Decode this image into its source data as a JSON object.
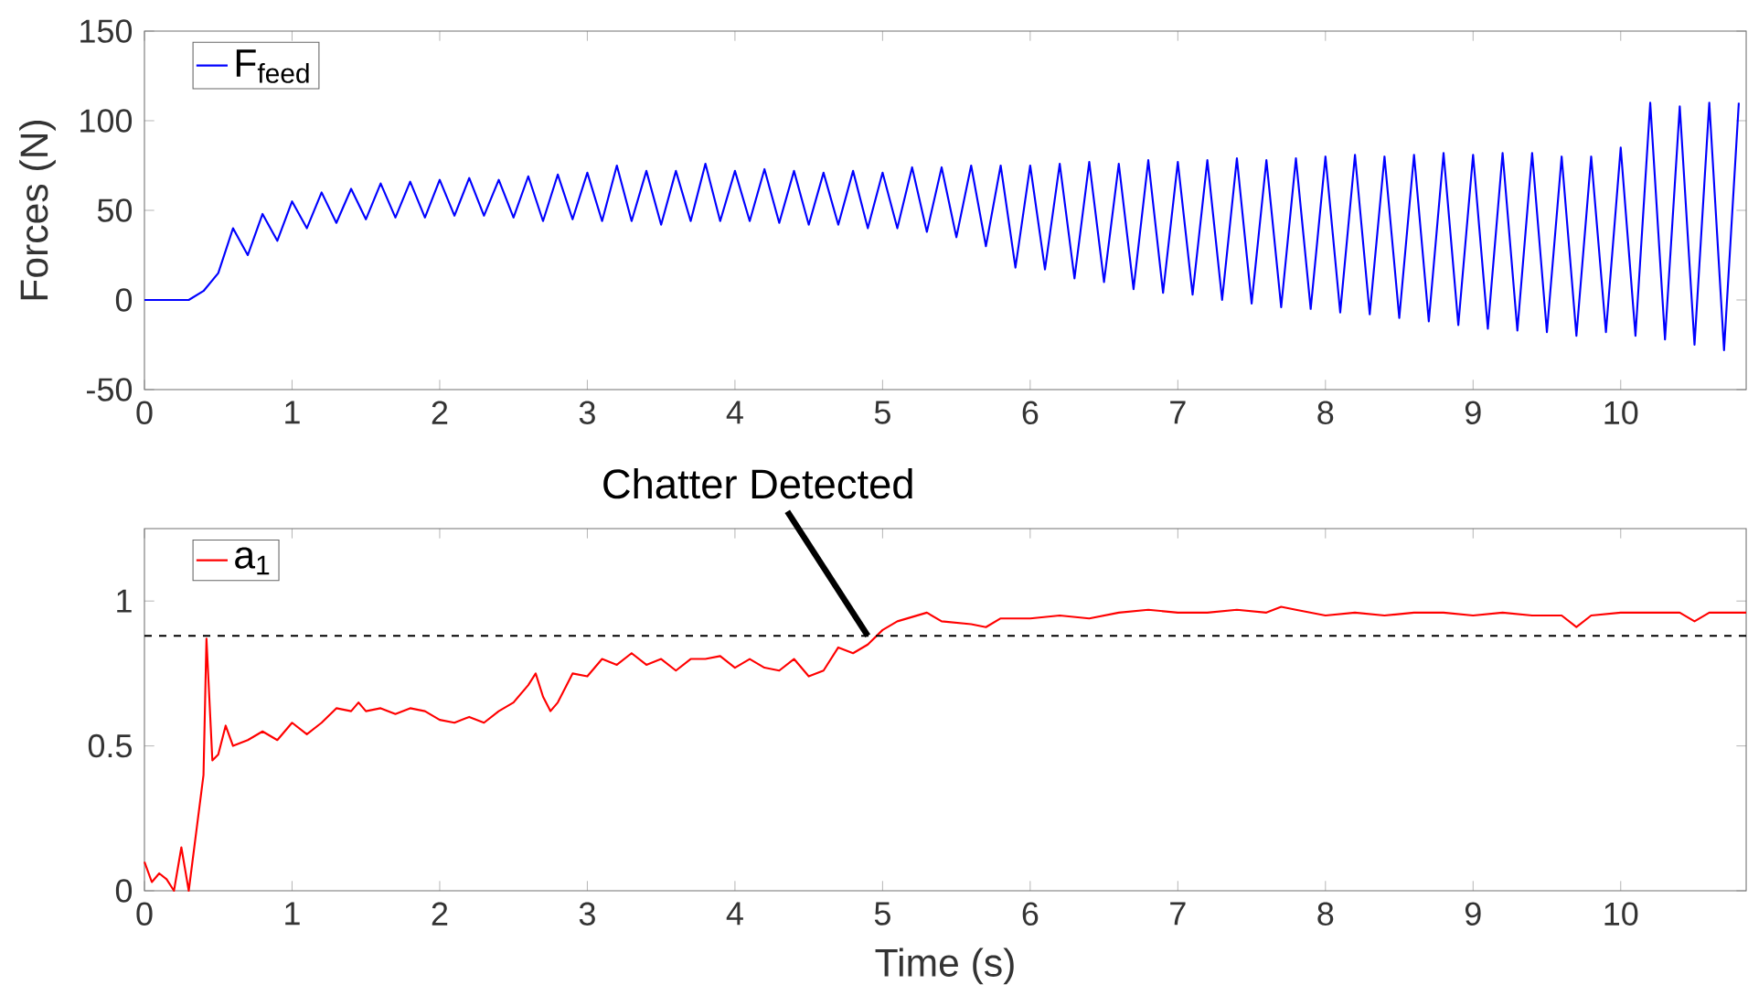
{
  "chart_data": [
    {
      "type": "line",
      "ylabel": "Forces (N)",
      "xlim": [
        0,
        10.85
      ],
      "xticks": [
        0,
        1,
        2,
        3,
        4,
        5,
        6,
        7,
        8,
        9,
        10
      ],
      "ylim": [
        -50,
        150
      ],
      "yticks": [
        -50,
        0,
        50,
        100,
        150
      ],
      "legend": "top left",
      "grid": false,
      "marker": "none",
      "line_style": "solid",
      "x": [
        0.0,
        0.1,
        0.2,
        0.3,
        0.4,
        0.5,
        0.6,
        0.7,
        0.8,
        0.9,
        1.0,
        1.1,
        1.2,
        1.3,
        1.4,
        1.5,
        1.6,
        1.7,
        1.8,
        1.9,
        2.0,
        2.1,
        2.2,
        2.3,
        2.4,
        2.5,
        2.6,
        2.7,
        2.8,
        2.9,
        3.0,
        3.1,
        3.2,
        3.3,
        3.4,
        3.5,
        3.6,
        3.7,
        3.8,
        3.9,
        4.0,
        4.1,
        4.2,
        4.3,
        4.4,
        4.5,
        4.6,
        4.7,
        4.8,
        4.9,
        5.0,
        5.1,
        5.2,
        5.3,
        5.4,
        5.5,
        5.6,
        5.7,
        5.8,
        5.9,
        6.0,
        6.1,
        6.2,
        6.3,
        6.4,
        6.5,
        6.6,
        6.7,
        6.8,
        6.9,
        7.0,
        7.1,
        7.2,
        7.3,
        7.4,
        7.5,
        7.6,
        7.7,
        7.8,
        7.9,
        8.0,
        8.1,
        8.2,
        8.3,
        8.4,
        8.5,
        8.6,
        8.7,
        8.8,
        8.9,
        9.0,
        9.1,
        9.2,
        9.3,
        9.4,
        9.5,
        9.6,
        9.7,
        9.8,
        9.9,
        10.0,
        10.1,
        10.2,
        10.3,
        10.4,
        10.5,
        10.6,
        10.7,
        10.8
      ],
      "series": [
        {
          "name": "F$_{feed}$",
          "color": "#0000ff",
          "values": [
            0,
            0,
            0,
            0,
            5,
            15,
            40,
            25,
            48,
            33,
            55,
            40,
            60,
            43,
            62,
            45,
            65,
            46,
            66,
            46,
            67,
            47,
            68,
            47,
            67,
            46,
            69,
            44,
            70,
            45,
            71,
            44,
            75,
            44,
            72,
            42,
            72,
            44,
            76,
            44,
            72,
            44,
            73,
            43,
            72,
            42,
            71,
            42,
            72,
            40,
            71,
            40,
            74,
            38,
            74,
            35,
            75,
            30,
            75,
            18,
            75,
            17,
            76,
            12,
            77,
            10,
            76,
            6,
            78,
            4,
            77,
            3,
            78,
            0,
            79,
            -2,
            78,
            -4,
            79,
            -5,
            80,
            -7,
            81,
            -8,
            80,
            -10,
            81,
            -12,
            82,
            -14,
            81,
            -16,
            82,
            -17,
            82,
            -18,
            80,
            -20,
            80,
            -18,
            85,
            -20,
            110,
            -22,
            108,
            -25,
            110,
            -28,
            110
          ]
        }
      ]
    },
    {
      "type": "line",
      "xlabel": "Time (s)",
      "xlim": [
        0,
        10.85
      ],
      "xticks": [
        0,
        1,
        2,
        3,
        4,
        5,
        6,
        7,
        8,
        9,
        10
      ],
      "ylim": [
        0,
        1.25
      ],
      "yticks": [
        0,
        0.5,
        1
      ],
      "legend": "top left",
      "grid": false,
      "marker": "none",
      "line_style": "solid",
      "ref_lines": [
        {
          "axis": "y",
          "value": 0.88,
          "color": "#000000",
          "line_style": "dashed"
        }
      ],
      "annotations": [
        {
          "text": "Chatter Detected",
          "x": 4.9,
          "y": 0.88
        }
      ],
      "x": [
        0,
        0.05,
        0.1,
        0.15,
        0.2,
        0.25,
        0.3,
        0.35,
        0.4,
        0.42,
        0.46,
        0.5,
        0.55,
        0.6,
        0.7,
        0.8,
        0.9,
        1.0,
        1.1,
        1.2,
        1.3,
        1.4,
        1.45,
        1.5,
        1.6,
        1.7,
        1.8,
        1.9,
        2.0,
        2.1,
        2.2,
        2.3,
        2.4,
        2.5,
        2.6,
        2.65,
        2.7,
        2.75,
        2.8,
        2.9,
        3.0,
        3.1,
        3.2,
        3.3,
        3.4,
        3.5,
        3.6,
        3.7,
        3.8,
        3.9,
        4.0,
        4.1,
        4.2,
        4.3,
        4.4,
        4.5,
        4.6,
        4.7,
        4.8,
        4.9,
        5.0,
        5.1,
        5.3,
        5.4,
        5.6,
        5.7,
        5.8,
        6.0,
        6.2,
        6.4,
        6.6,
        6.8,
        7.0,
        7.2,
        7.4,
        7.6,
        7.7,
        7.8,
        8.0,
        8.2,
        8.4,
        8.6,
        8.8,
        9.0,
        9.2,
        9.4,
        9.6,
        9.7,
        9.8,
        10.0,
        10.2,
        10.4,
        10.5,
        10.6,
        10.85
      ],
      "series": [
        {
          "name": "a$_{1}$",
          "color": "#ff0000",
          "values": [
            0.1,
            0.03,
            0.06,
            0.04,
            0,
            0.15,
            0,
            0.2,
            0.4,
            0.87,
            0.45,
            0.47,
            0.57,
            0.5,
            0.52,
            0.55,
            0.52,
            0.58,
            0.54,
            0.58,
            0.63,
            0.62,
            0.65,
            0.62,
            0.63,
            0.61,
            0.63,
            0.62,
            0.59,
            0.58,
            0.6,
            0.58,
            0.62,
            0.65,
            0.71,
            0.75,
            0.67,
            0.62,
            0.65,
            0.75,
            0.74,
            0.8,
            0.78,
            0.82,
            0.78,
            0.8,
            0.76,
            0.8,
            0.8,
            0.81,
            0.77,
            0.8,
            0.77,
            0.76,
            0.8,
            0.74,
            0.76,
            0.84,
            0.82,
            0.85,
            0.9,
            0.93,
            0.96,
            0.93,
            0.92,
            0.91,
            0.94,
            0.94,
            0.95,
            0.94,
            0.96,
            0.97,
            0.96,
            0.96,
            0.97,
            0.96,
            0.98,
            0.97,
            0.95,
            0.96,
            0.95,
            0.96,
            0.96,
            0.95,
            0.96,
            0.95,
            0.95,
            0.91,
            0.95,
            0.96,
            0.96,
            0.96,
            0.93,
            0.96,
            0.96
          ]
        }
      ]
    }
  ]
}
